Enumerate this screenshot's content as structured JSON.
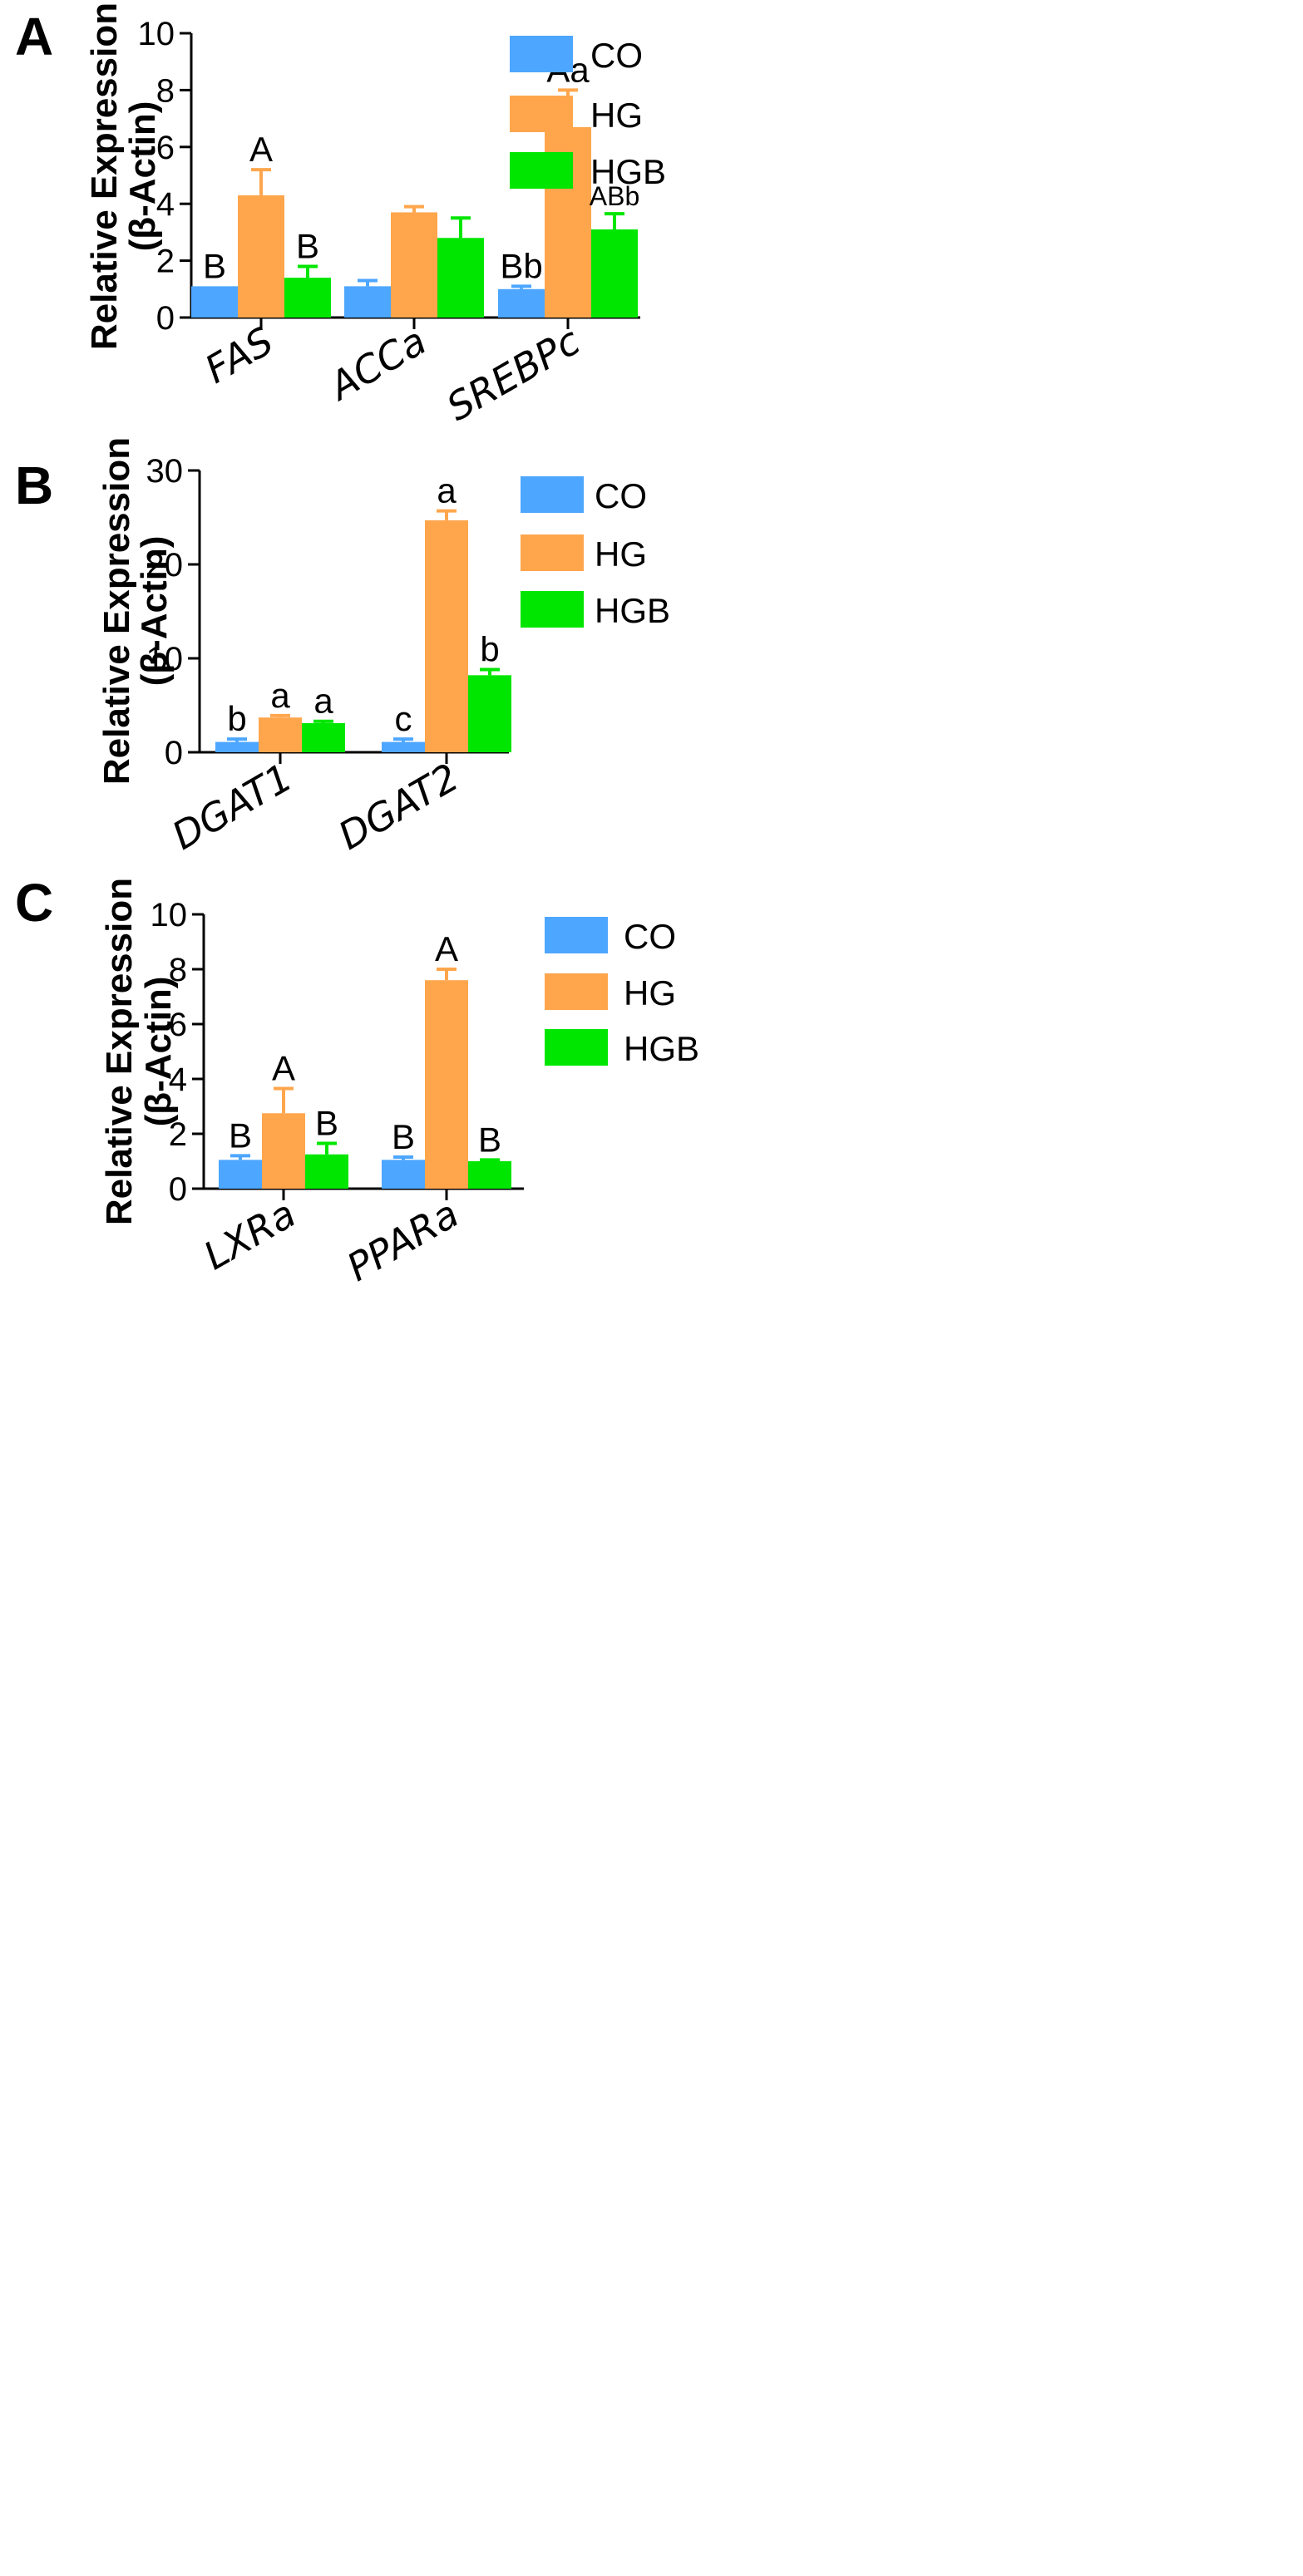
{
  "legend": {
    "labels": [
      "CO",
      "HG",
      "HGB"
    ],
    "colors": [
      "#4da6ff",
      "#ffa64d",
      "#00e600"
    ]
  },
  "chart_data": [
    {
      "panel": "A",
      "type": "bar",
      "ylabel": [
        "Relative Expression",
        "(β-Actin)"
      ],
      "ylim": [
        0,
        10
      ],
      "yticks": [
        0,
        2,
        4,
        6,
        8,
        10
      ],
      "categories": [
        "FAS",
        "ACCa",
        "SREBPc"
      ],
      "series": [
        {
          "name": "CO",
          "values": [
            1.1,
            1.1,
            1.0
          ],
          "errors": [
            0.0,
            0.2,
            0.1
          ],
          "labels": [
            "B",
            "",
            "Bb"
          ]
        },
        {
          "name": "HG",
          "values": [
            4.3,
            3.7,
            6.7
          ],
          "errors": [
            0.9,
            0.2,
            1.3
          ],
          "labels": [
            "A",
            "",
            "Aa"
          ]
        },
        {
          "name": "HGB",
          "values": [
            1.4,
            2.8,
            3.1
          ],
          "errors": [
            0.4,
            0.7,
            0.55
          ],
          "labels": [
            "B",
            "",
            "ABb"
          ]
        }
      ]
    },
    {
      "panel": "B",
      "type": "bar",
      "ylabel": [
        "Relative Expression",
        "(β-Actin)"
      ],
      "ylim": [
        0,
        30
      ],
      "yticks": [
        0,
        10,
        20,
        30
      ],
      "categories": [
        "DGAT1",
        "DGAT2"
      ],
      "series": [
        {
          "name": "CO",
          "values": [
            1.1,
            1.1
          ],
          "errors": [
            0.3,
            0.3
          ],
          "labels": [
            "b",
            "c"
          ]
        },
        {
          "name": "HG",
          "values": [
            3.7,
            24.7
          ],
          "errors": [
            0.2,
            1.0
          ],
          "labels": [
            "a",
            "a"
          ]
        },
        {
          "name": "HGB",
          "values": [
            3.1,
            8.2
          ],
          "errors": [
            0.2,
            0.6
          ],
          "labels": [
            "a",
            "b"
          ]
        }
      ]
    },
    {
      "panel": "C",
      "type": "bar",
      "ylabel": [
        "Relative Expression",
        "(β-Actin)"
      ],
      "ylim": [
        0,
        10
      ],
      "yticks": [
        0,
        2,
        4,
        6,
        8,
        10
      ],
      "categories": [
        "LXRa",
        "PPARa"
      ],
      "series": [
        {
          "name": "CO",
          "values": [
            1.05,
            1.05
          ],
          "errors": [
            0.15,
            0.1
          ],
          "labels": [
            "B",
            "B"
          ]
        },
        {
          "name": "HG",
          "values": [
            2.75,
            7.6
          ],
          "errors": [
            0.9,
            0.4
          ],
          "labels": [
            "A",
            "A"
          ]
        },
        {
          "name": "HGB",
          "values": [
            1.25,
            1.0
          ],
          "errors": [
            0.4,
            0.05
          ],
          "labels": [
            "B",
            "B"
          ]
        }
      ]
    }
  ]
}
